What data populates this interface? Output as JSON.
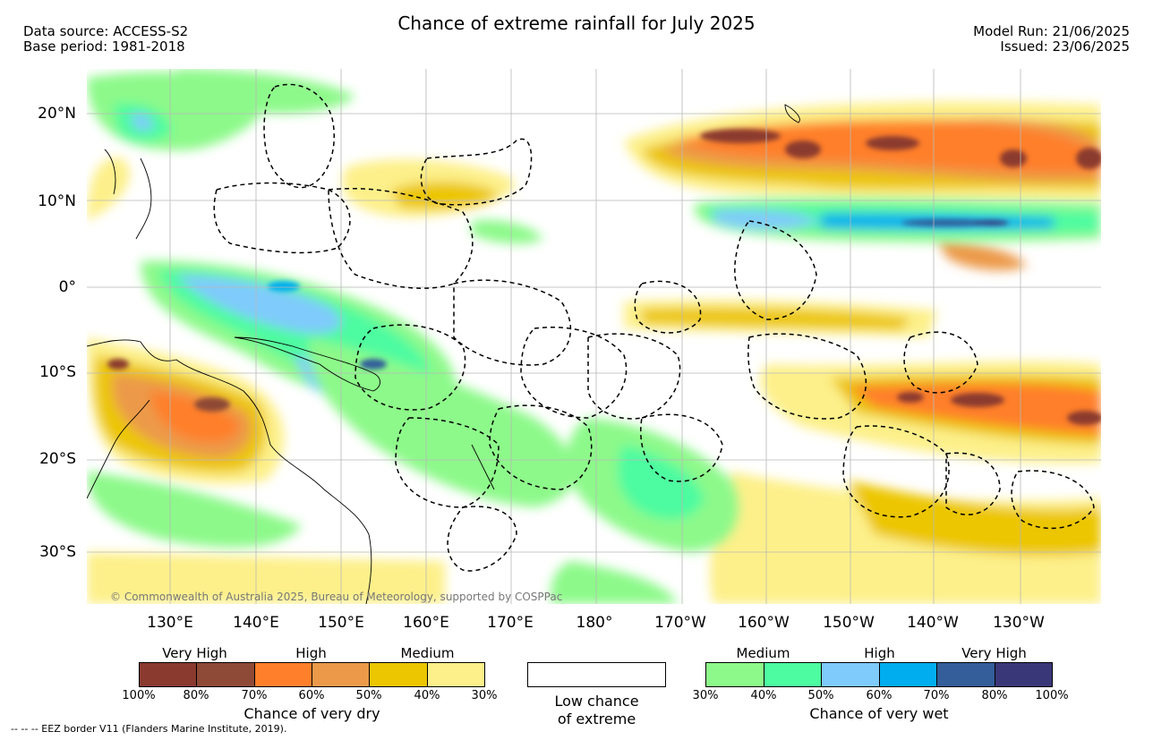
{
  "header": {
    "title": "Chance of extreme rainfall for July 2025",
    "data_source": "Data source: ACCESS-S2",
    "base_period": "Base period: 1981-2018",
    "model_run": "Model Run: 21/06/2025",
    "issued": "Issued: 23/06/2025"
  },
  "map": {
    "lat_labels": [
      "20°N",
      "10°N",
      "0°",
      "10°S",
      "20°S",
      "30°S"
    ],
    "lon_labels": [
      "130°E",
      "140°E",
      "150°E",
      "160°E",
      "170°E",
      "180°",
      "170°W",
      "160°W",
      "150°W",
      "140°W",
      "130°W"
    ],
    "copyright": "© Commonwealth of Australia 2025, Bureau of Meteorology, supported by COSPPac"
  },
  "legend": {
    "dry": {
      "categories": [
        "Very High",
        "High",
        "Medium"
      ],
      "ticks": [
        "100%",
        "80%",
        "70%",
        "60%",
        "50%",
        "40%",
        "30%"
      ],
      "colors": [
        "#8b3a2f",
        "#8e4a36",
        "#ff7f2a",
        "#ec9a4a",
        "#ecc600",
        "#fdf08a"
      ],
      "caption": "Chance of very dry"
    },
    "low": {
      "line1": "Low chance",
      "line2": "of extreme"
    },
    "wet": {
      "categories": [
        "Medium",
        "High",
        "Very High"
      ],
      "ticks": [
        "30%",
        "40%",
        "50%",
        "60%",
        "70%",
        "80%",
        "100%"
      ],
      "colors": [
        "#8df98a",
        "#4dfba0",
        "#7fcbfb",
        "#00aeef",
        "#335e9a",
        "#3a3779"
      ],
      "caption": "Chance of very wet"
    }
  },
  "footnote": "--  --  -- EEZ border V11 (Flanders Marine Institute, 2019)."
}
